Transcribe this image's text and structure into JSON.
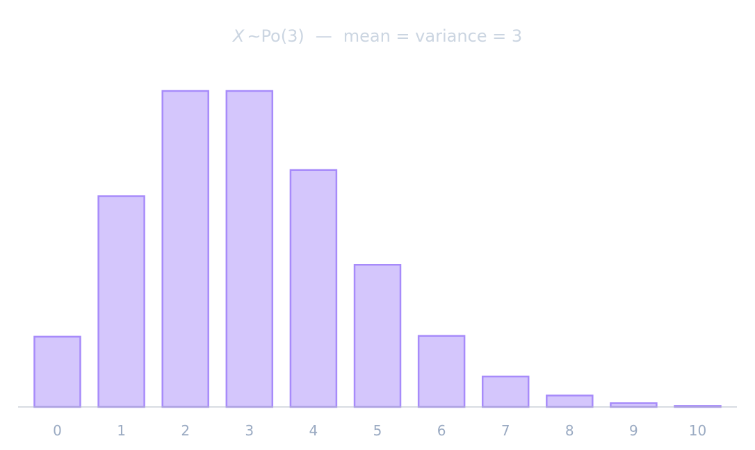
{
  "chart_data": {
    "type": "bar",
    "title_var": "X",
    "title_dist": "∼Po(3)",
    "title_sep": "—",
    "title_rest": "mean = variance = 3",
    "categories": [
      "0",
      "1",
      "2",
      "3",
      "4",
      "5",
      "6",
      "7",
      "8",
      "9",
      "10"
    ],
    "values": [
      0.0498,
      0.1494,
      0.224,
      0.224,
      0.168,
      0.1008,
      0.0504,
      0.0216,
      0.0081,
      0.0027,
      0.0008
    ],
    "xlabel": "",
    "ylabel": "",
    "ylim": [
      0,
      0.224
    ],
    "grid": false,
    "legend": "none",
    "colors": {
      "bar_fill": "#d4c6fc",
      "bar_stroke": "#a78bfa",
      "axis": "#b0b8c4",
      "tick_label": "#9aaac2",
      "title": "#cbd5e1"
    }
  }
}
